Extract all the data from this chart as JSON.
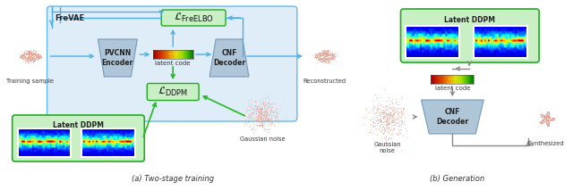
{
  "title_a": "(a) Two-stage training",
  "title_b": "(b) Generation",
  "bg_color": "#ffffff",
  "freVAE_bg": "#daeaf7",
  "latent_ddpm_bg": "#c8f0c4",
  "box_encoder": "#aec6d8",
  "box_cnf": "#aec6d8",
  "box_loss_fre": "#c8f0c4",
  "box_loss_ddpm": "#c8f0c4",
  "box_cnf_b": "#aec6d8",
  "arrow_blue": "#4baee8",
  "arrow_green": "#22bb22",
  "arrow_gray": "#888888",
  "text_freVAE": "FreVAE",
  "text_encoder": "PVCNN\nEncoder",
  "text_cnf_decoder_a": "CNF\nDecoder",
  "text_cnf_decoder_b": "CNF\nDecoder",
  "text_loss_fre": "$\\mathcal{L}_{\\mathrm{FreELBO}}$",
  "text_loss_ddpm": "$\\mathcal{L}_{\\mathrm{DDPM}}$",
  "text_latent_code_a": "latent code",
  "text_latent_code_b": "latent code",
  "text_latent_ddpm_a": "Latent DDPM",
  "text_latent_ddpm_b": "Latent DDPM",
  "text_training_sample": "Training sample",
  "text_reconstructed": "Reconstructed",
  "text_gaussian_a": "Gaussian noise",
  "text_gaussian_noise_b": "Gaussian\nnoise",
  "text_synthesized": "Synthesized"
}
